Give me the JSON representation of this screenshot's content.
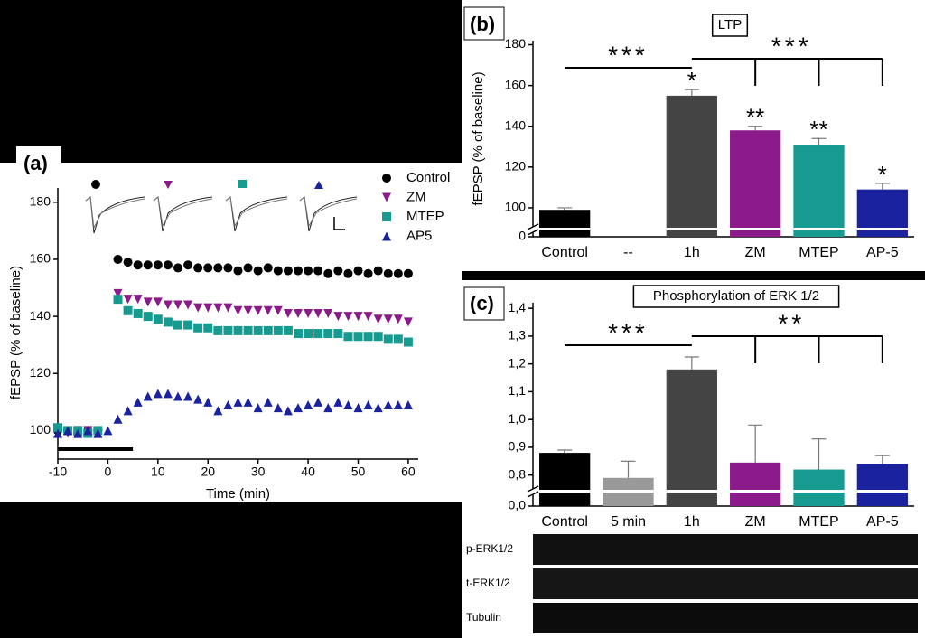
{
  "chart_data": [
    {
      "type": "scatter",
      "panel_label": "(a)",
      "xlabel": "Time (min)",
      "ylabel": "fEPSP (% of baseline)",
      "x": [
        -10,
        -8,
        -6,
        -4,
        -2,
        0,
        2,
        4,
        6,
        8,
        10,
        12,
        14,
        16,
        18,
        20,
        22,
        24,
        26,
        28,
        30,
        32,
        34,
        36,
        38,
        40,
        42,
        44,
        46,
        48,
        50,
        52,
        54,
        56,
        58,
        60
      ],
      "series": [
        {
          "name": "Control",
          "color": "#000000",
          "marker": "circle",
          "values": [
            100,
            100,
            99,
            100,
            100,
            null,
            160,
            159,
            158,
            158,
            158,
            158,
            157,
            158,
            157,
            157,
            157,
            157,
            156,
            157,
            156,
            157,
            156,
            156,
            156,
            156,
            156,
            155,
            156,
            155,
            156,
            155,
            156,
            155,
            155,
            155
          ]
        },
        {
          "name": "ZM",
          "color": "#8b1a8b",
          "marker": "triangle-down",
          "values": [
            100,
            99,
            100,
            100,
            99,
            null,
            148,
            146,
            146,
            145,
            145,
            144,
            144,
            144,
            143,
            143,
            143,
            143,
            142,
            142,
            142,
            142,
            142,
            141,
            141,
            141,
            141,
            141,
            140,
            140,
            140,
            140,
            139,
            139,
            139,
            138
          ]
        },
        {
          "name": "MTEP",
          "color": "#179a8f",
          "marker": "square",
          "values": [
            101,
            100,
            100,
            99,
            100,
            null,
            146,
            142,
            141,
            140,
            139,
            138,
            137,
            137,
            136,
            136,
            135,
            135,
            135,
            135,
            135,
            135,
            135,
            135,
            134,
            134,
            134,
            134,
            134,
            133,
            133,
            133,
            133,
            132,
            132,
            131
          ]
        },
        {
          "name": "AP5",
          "color": "#1a22a0",
          "marker": "triangle-up",
          "values": [
            99,
            100,
            99,
            100,
            99,
            100,
            104,
            107,
            110,
            112,
            113,
            113,
            112,
            112,
            111,
            110,
            107,
            109,
            110,
            110,
            108,
            110,
            108,
            107,
            108,
            109,
            110,
            108,
            110,
            109,
            108,
            109,
            108,
            109,
            109,
            109
          ]
        }
      ],
      "application_bar": [
        -10,
        5
      ],
      "xlim": [
        -10,
        62
      ],
      "xticks": [
        -10,
        0,
        10,
        20,
        30,
        40,
        50,
        60
      ],
      "ylim": [
        90,
        185
      ],
      "yticks": [
        100,
        120,
        140,
        160,
        180
      ]
    },
    {
      "type": "bar",
      "panel_label": "(b)",
      "title": "LTP",
      "ylabel": "fEPSP (% of baseline)",
      "categories": [
        "Control",
        "--",
        "1h",
        "ZM",
        "MTEP",
        "AP-5"
      ],
      "values": [
        99,
        null,
        155,
        138,
        131,
        109
      ],
      "errors": [
        1,
        null,
        3,
        2,
        3,
        3
      ],
      "colors": [
        "#000000",
        "#000000",
        "#444444",
        "#8b1a8b",
        "#179a8f",
        "#1a22a0"
      ],
      "bar_labels": [
        null,
        null,
        "*",
        "**",
        "**",
        "*"
      ],
      "bracket_labels": [
        "***",
        "***"
      ],
      "ylim": [
        0,
        182
      ],
      "axis_break": [
        0,
        92
      ],
      "yticks": [
        0,
        100,
        120,
        140,
        160,
        180
      ]
    },
    {
      "type": "bar",
      "panel_label": "(c)",
      "title": "Phosphorylation of ERK 1/2",
      "categories": [
        "Control",
        "5 min",
        "1h",
        "ZM",
        "MTEP",
        "AP-5"
      ],
      "values": [
        0.88,
        0.79,
        1.18,
        0.845,
        0.82,
        0.84
      ],
      "errors": [
        0.01,
        0.06,
        0.045,
        0.135,
        0.11,
        0.03
      ],
      "colors": [
        "#000000",
        "#999999",
        "#444444",
        "#8b1a8b",
        "#179a8f",
        "#1a22a0"
      ],
      "bracket_labels": [
        "***",
        "**"
      ],
      "blot_labels": [
        "p-ERK1/2",
        "t-ERK1/2",
        "Tubulin"
      ],
      "ylim": [
        0,
        1.42
      ],
      "axis_break": [
        0,
        0.76
      ],
      "yticks": [
        {
          "value": 0,
          "label": "0,0"
        },
        {
          "value": 0.8,
          "label": "0,8"
        },
        {
          "value": 0.9,
          "label": "0,9"
        },
        {
          "value": 1.0,
          "label": "1,0"
        },
        {
          "value": 1.1,
          "label": "1,1"
        },
        {
          "value": 1.2,
          "label": "1,2"
        },
        {
          "value": 1.3,
          "label": "1,3"
        },
        {
          "value": 1.4,
          "label": "1,4"
        }
      ]
    }
  ]
}
